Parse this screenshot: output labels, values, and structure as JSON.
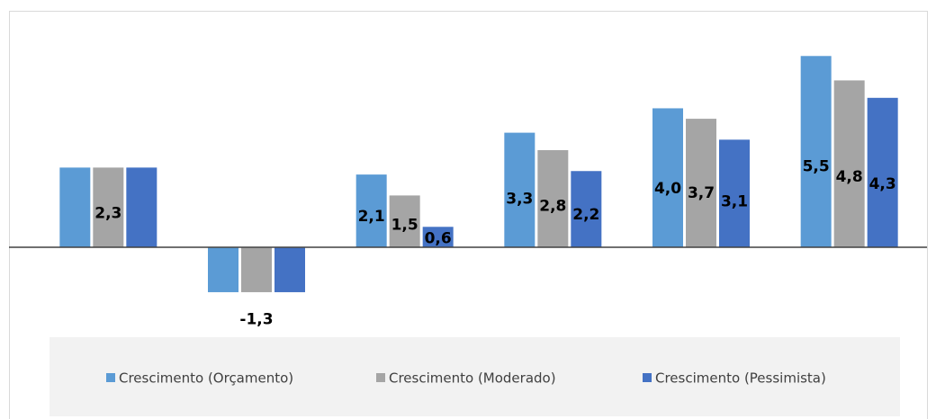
{
  "chart_data": {
    "type": "bar",
    "categories": [
      null,
      null,
      null,
      null,
      null,
      null
    ],
    "series": [
      {
        "name": "Crescimento (Orçamento)",
        "color": "#5b9bd5",
        "values": [
          2.3,
          -1.3,
          2.1,
          3.3,
          4.0,
          5.5
        ],
        "value_labels": [
          null,
          null,
          "2,1",
          "3,3",
          "4,0",
          "5,5"
        ]
      },
      {
        "name": "Crescimento (Moderado)",
        "color": "#a5a5a5",
        "values": [
          2.3,
          -1.3,
          1.5,
          2.8,
          3.7,
          4.8
        ],
        "value_labels": [
          "2,3",
          "-1,3",
          "1,5",
          "2,8",
          "3,7",
          "4,8"
        ]
      },
      {
        "name": "Crescimento (Pessimista)",
        "color": "#4472c4",
        "values": [
          2.3,
          -1.3,
          0.6,
          2.2,
          3.1,
          4.3
        ],
        "value_labels": [
          null,
          null,
          "0,6",
          "2,2",
          "3,1",
          "4,3"
        ]
      }
    ],
    "ylim": [
      -2.5,
      6.5
    ],
    "legend": "bottom"
  }
}
